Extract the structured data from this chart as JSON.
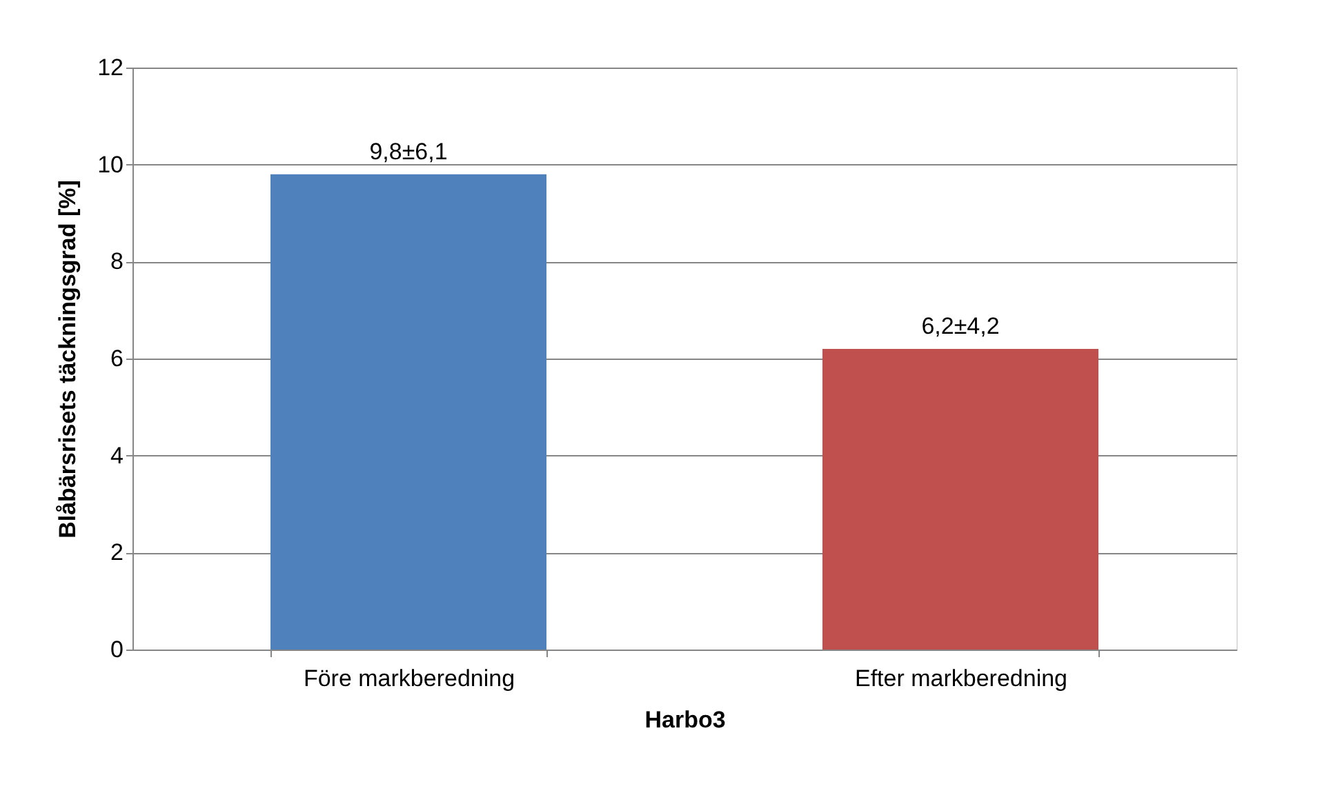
{
  "chart_data": {
    "type": "bar",
    "xlabel": "Harbo3",
    "ylabel": "Blåbärsrisets täckningsgrad [%]",
    "categories": [
      "Före markberedning",
      "Efter markberedning"
    ],
    "values": [
      9.8,
      6.2
    ],
    "colors": [
      "#4f81bd",
      "#c0504d"
    ],
    "value_labels": [
      "9,8±6,1",
      "6,2±4,2"
    ],
    "ylim": [
      0,
      12
    ],
    "yticks": [
      0,
      2,
      4,
      6,
      8,
      10,
      12
    ],
    "grid": "y"
  }
}
